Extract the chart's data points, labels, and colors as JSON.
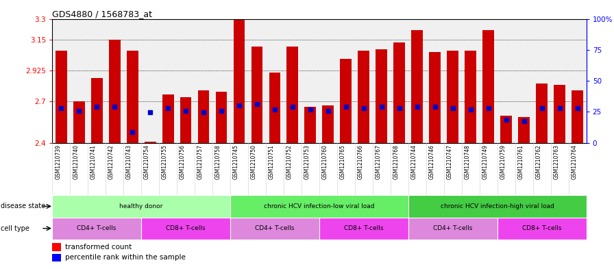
{
  "title": "GDS4880 / 1568783_at",
  "samples": [
    "GSM1210739",
    "GSM1210740",
    "GSM1210741",
    "GSM1210742",
    "GSM1210743",
    "GSM1210754",
    "GSM1210755",
    "GSM1210756",
    "GSM1210757",
    "GSM1210758",
    "GSM1210745",
    "GSM1210750",
    "GSM1210751",
    "GSM1210752",
    "GSM1210753",
    "GSM1210760",
    "GSM1210765",
    "GSM1210766",
    "GSM1210767",
    "GSM1210768",
    "GSM1210744",
    "GSM1210746",
    "GSM1210747",
    "GSM1210748",
    "GSM1210749",
    "GSM1210759",
    "GSM1210761",
    "GSM1210762",
    "GSM1210763",
    "GSM1210764"
  ],
  "bar_values": [
    3.07,
    2.7,
    2.87,
    3.15,
    3.07,
    2.41,
    2.75,
    2.73,
    2.78,
    2.77,
    3.3,
    3.1,
    2.91,
    3.1,
    2.66,
    2.67,
    3.01,
    3.07,
    3.08,
    3.13,
    3.22,
    3.06,
    3.07,
    3.07,
    3.22,
    2.6,
    2.59,
    2.83,
    2.82,
    2.78
  ],
  "dot_values": [
    2.65,
    2.63,
    2.66,
    2.66,
    2.48,
    2.62,
    2.65,
    2.63,
    2.62,
    2.63,
    2.67,
    2.68,
    2.64,
    2.66,
    2.64,
    2.63,
    2.66,
    2.65,
    2.66,
    2.65,
    2.66,
    2.66,
    2.65,
    2.64,
    2.65,
    2.57,
    2.56,
    2.65,
    2.65,
    2.65
  ],
  "ymin": 2.4,
  "ymax": 3.3,
  "yticks": [
    2.4,
    2.7,
    2.925,
    3.15,
    3.3
  ],
  "ytick_labels": [
    "2.4",
    "2.7",
    "2.925",
    "3.15",
    "3.3"
  ],
  "right_yticks": [
    0,
    25,
    50,
    75,
    100
  ],
  "right_ytick_labels": [
    "0",
    "25",
    "50",
    "75",
    "100%"
  ],
  "bar_color": "#cc0000",
  "dot_color": "#0000cc",
  "disease_states": [
    {
      "label": "healthy donor",
      "start": 0,
      "end": 10,
      "color": "#aaffaa"
    },
    {
      "label": "chronic HCV infection-low viral load",
      "start": 10,
      "end": 20,
      "color": "#66ee66"
    },
    {
      "label": "chronic HCV infection-high viral load",
      "start": 20,
      "end": 30,
      "color": "#44cc44"
    }
  ],
  "cell_types": [
    {
      "label": "CD4+ T-cells",
      "start": 0,
      "end": 5,
      "color": "#dd88dd"
    },
    {
      "label": "CD8+ T-cells",
      "start": 5,
      "end": 10,
      "color": "#ee44ee"
    },
    {
      "label": "CD4+ T-cells",
      "start": 10,
      "end": 15,
      "color": "#dd88dd"
    },
    {
      "label": "CD8+ T-cells",
      "start": 15,
      "end": 20,
      "color": "#ee44ee"
    },
    {
      "label": "CD4+ T-cells",
      "start": 20,
      "end": 25,
      "color": "#dd88dd"
    },
    {
      "label": "CD8+ T-cells",
      "start": 25,
      "end": 30,
      "color": "#ee44ee"
    }
  ],
  "disease_state_label": "disease state",
  "cell_type_label": "cell type",
  "legend_tc": "transformed count",
  "legend_pr": "percentile rank within the sample",
  "bar_width": 0.65
}
